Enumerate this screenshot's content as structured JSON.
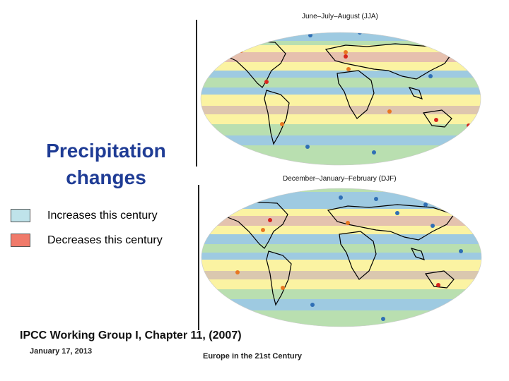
{
  "title": "Precipitation changes",
  "title_lines": [
    "Precipitation",
    "changes"
  ],
  "legend": [
    {
      "label": "Increases this century",
      "color": "#bfe3ea"
    },
    {
      "label": "Decreases this century",
      "color": "#f07a6a"
    }
  ],
  "maps": [
    {
      "season": "June–July–August (JJA)"
    },
    {
      "season": "December–January–February (DJF)"
    }
  ],
  "citation": "IPCC Working Group I, Chapter 11, (2007)",
  "footer": {
    "date": "January 17, 2013",
    "title": "Europe in the 21st Century"
  },
  "colors": {
    "title": "#1f3c95",
    "band_blue": "#9ecae1",
    "band_green": "#b9dfb0",
    "band_yellow": "#fbf3a2",
    "band_pink": "#f6b5ae",
    "land_outline": "#000000"
  }
}
